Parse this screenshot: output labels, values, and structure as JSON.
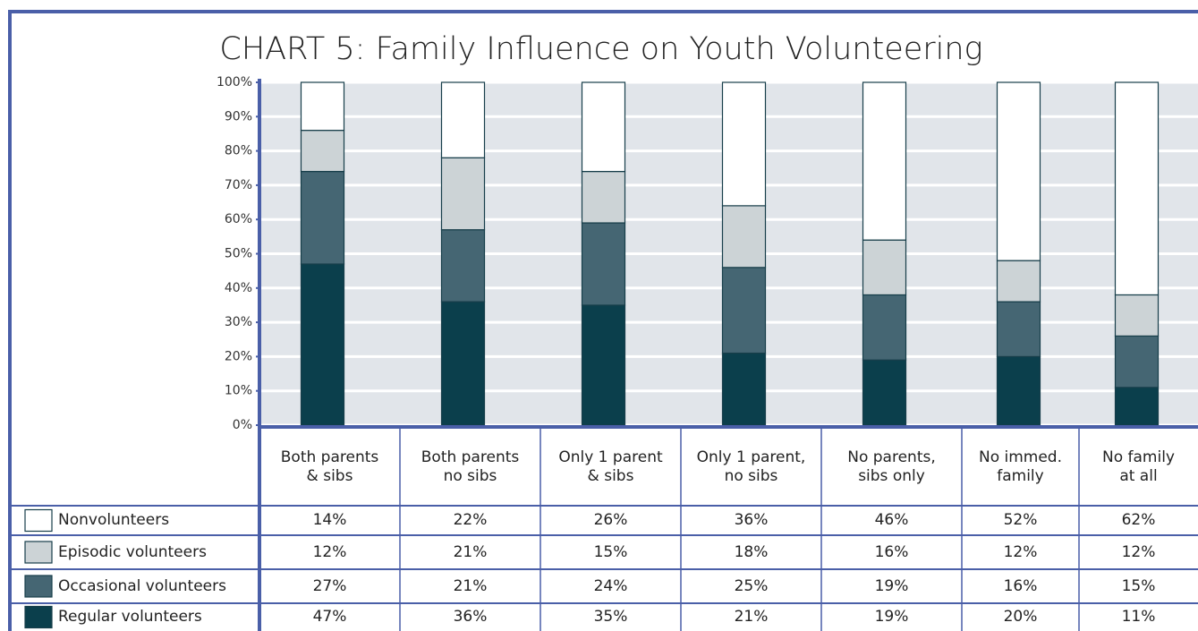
{
  "chart_data": {
    "type": "stacked_bar",
    "title": "CHART 5: Family Influence on Youth Volunteering",
    "categories": [
      "Both parents\n& sibs",
      "Both parents\nno sibs",
      "Only 1 parent\n& sibs",
      "Only 1 parent,\nno sibs",
      "No parents,\nsibs only",
      "No immed.\nfamily",
      "No family\nat all"
    ],
    "series": [
      {
        "name": "Nonvolunteers",
        "color": "#ffffff",
        "values": [
          14,
          22,
          26,
          36,
          46,
          52,
          62
        ],
        "value_labels": [
          "14%",
          "22%",
          "26%",
          "36%",
          "46%",
          "52%",
          "62%"
        ]
      },
      {
        "name": "Episodic volunteers",
        "color": "#ccd3d6",
        "values": [
          12,
          21,
          15,
          18,
          16,
          12,
          12
        ],
        "value_labels": [
          "12%",
          "21%",
          "15%",
          "18%",
          "16%",
          "12%",
          "12%"
        ]
      },
      {
        "name": "Occasional volunteers",
        "color": "#456673",
        "values": [
          27,
          21,
          24,
          25,
          19,
          16,
          15
        ],
        "value_labels": [
          "27%",
          "21%",
          "24%",
          "25%",
          "19%",
          "16%",
          "15%"
        ]
      },
      {
        "name": "Regular volunteers",
        "color": "#0b3f4c",
        "values": [
          47,
          36,
          35,
          21,
          19,
          20,
          11
        ],
        "value_labels": [
          "47%",
          "36%",
          "35%",
          "21%",
          "19%",
          "20%",
          "11%"
        ]
      }
    ],
    "ylim": [
      0,
      100
    ],
    "yticks": [
      {
        "value": 0,
        "label": "0%"
      },
      {
        "value": 10,
        "label": "10%"
      },
      {
        "value": 20,
        "label": "20%"
      },
      {
        "value": 30,
        "label": "30%"
      },
      {
        "value": 40,
        "label": "40%"
      },
      {
        "value": 50,
        "label": "50%"
      },
      {
        "value": 60,
        "label": "60%"
      },
      {
        "value": 70,
        "label": "70%"
      },
      {
        "value": 80,
        "label": "80%"
      },
      {
        "value": 90,
        "label": "90%"
      },
      {
        "value": 100,
        "label": "100%"
      }
    ],
    "grid": true
  }
}
